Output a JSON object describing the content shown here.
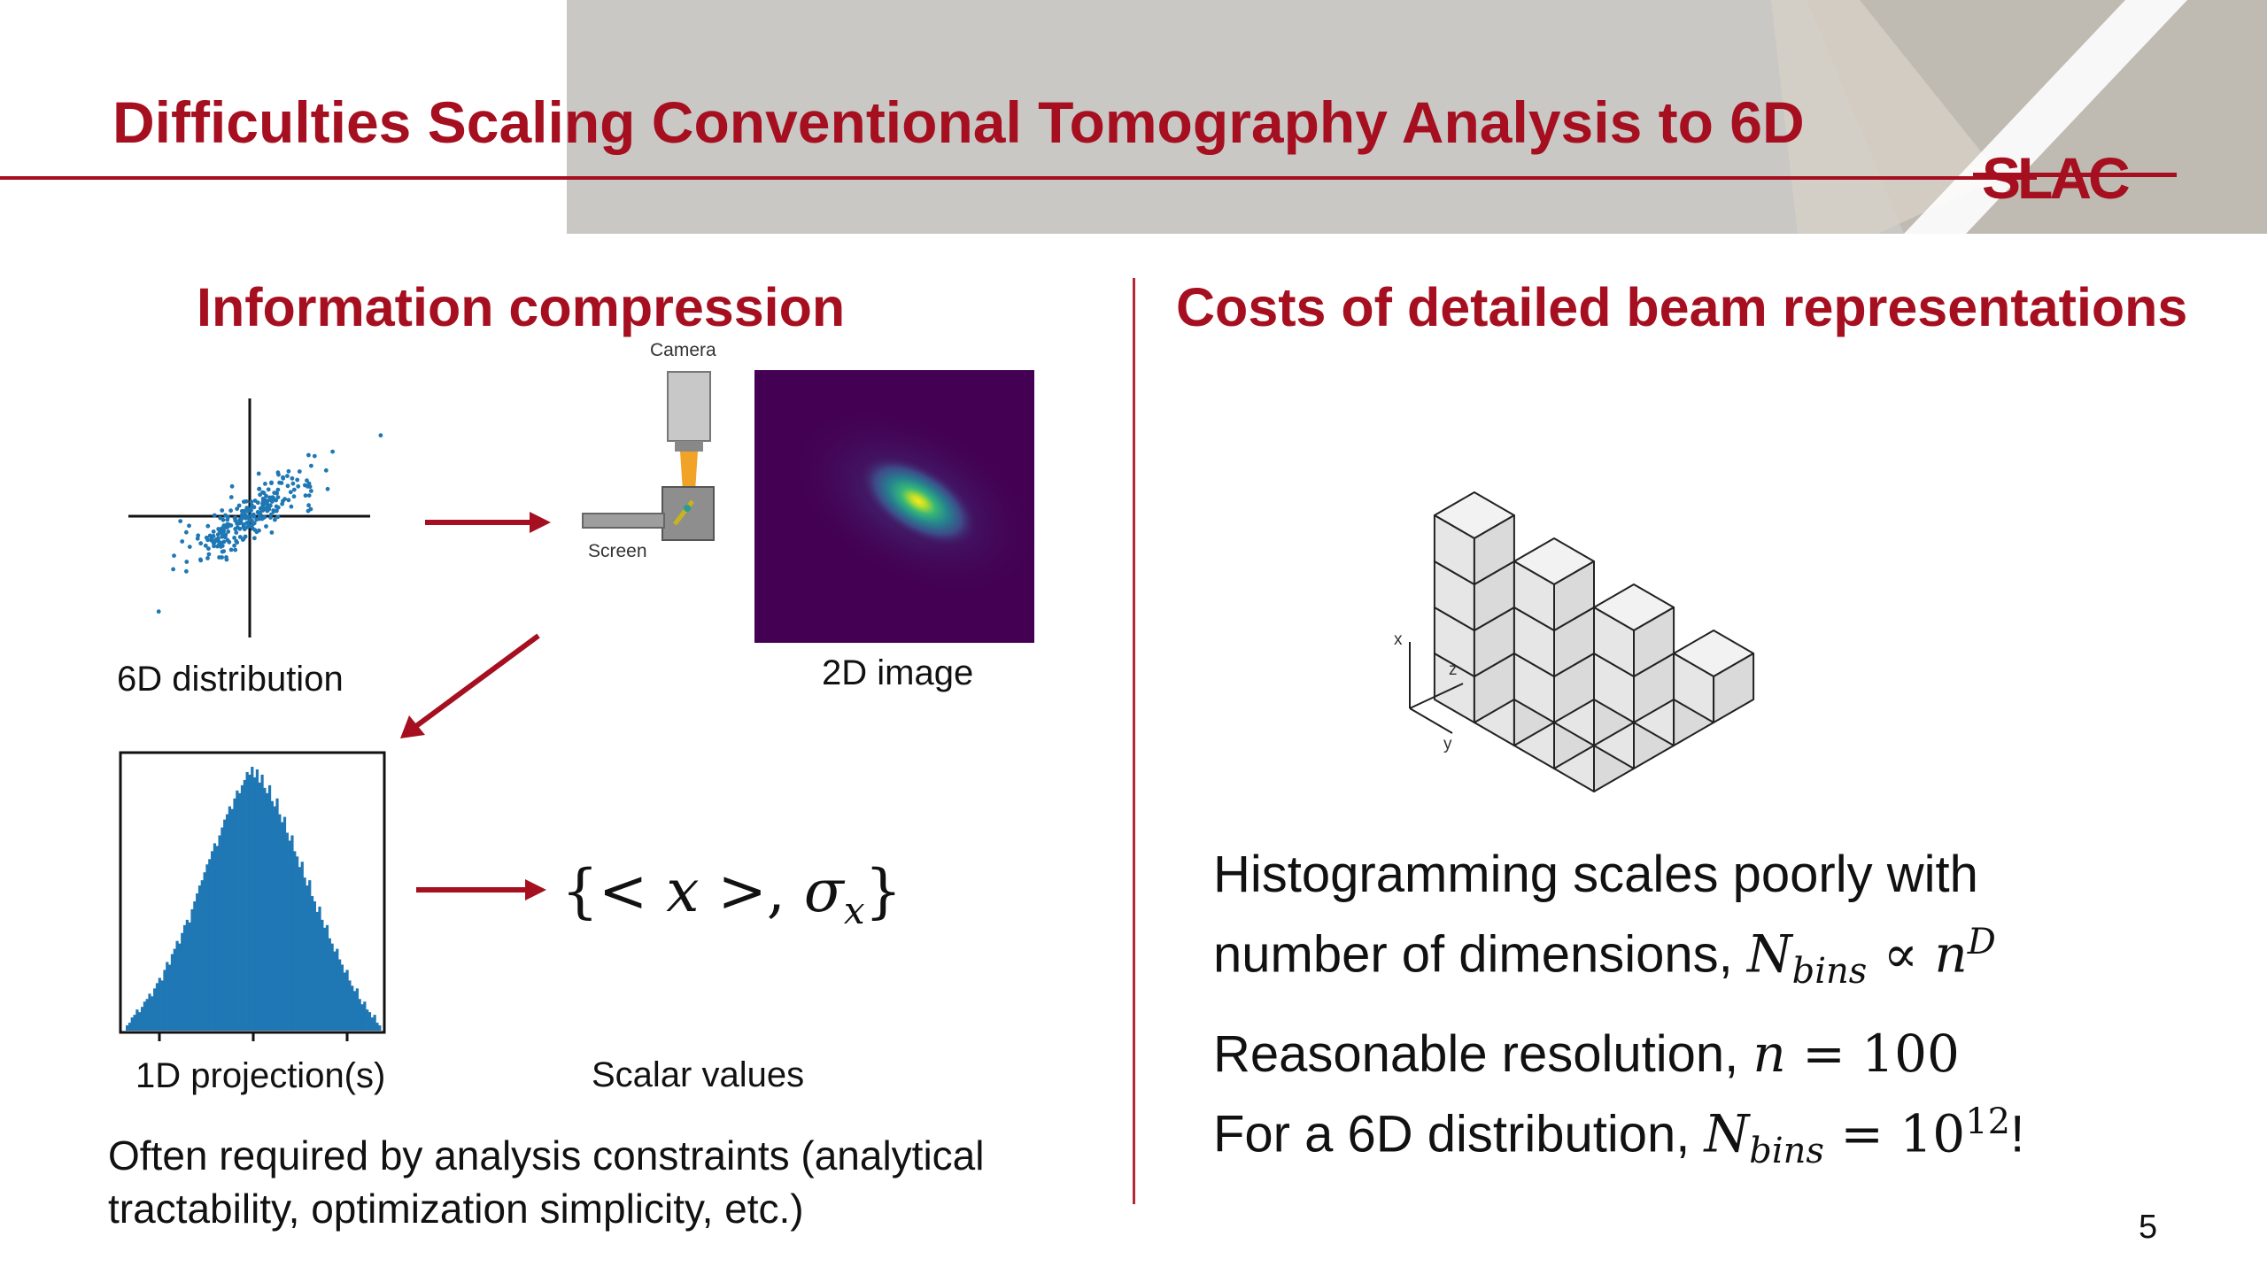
{
  "slide": {
    "title": "Difficulties Scaling Conventional Tomography Analysis to 6D",
    "logo_text": "SLAC",
    "page_number": "5",
    "accent_color": "#a50f1f"
  },
  "left": {
    "heading": "Information compression",
    "camera_label": "Camera",
    "screen_label": "Screen",
    "distribution_caption": "6D distribution",
    "image_caption": "2D image",
    "projection_caption": "1D projection(s)",
    "scalar_caption": "Scalar values",
    "scalar_formula": {
      "open": "{< ",
      "x": "x",
      "mid": " >, ",
      "sigma": "σ",
      "sub": "x",
      "close": "}"
    },
    "note_line1": "Often required by analysis constraints (analytical",
    "note_line2": "tractability, optimization simplicity, etc.)"
  },
  "right": {
    "heading": "Costs of detailed beam representations",
    "axis_x": "x",
    "axis_y": "y",
    "axis_z": "z",
    "para1_line1": "Histogramming scales poorly with",
    "para1_line2_text": "number of dimensions, ",
    "para1_formula": {
      "N": "N",
      "sub": "bins",
      "prop": " ∝ ",
      "n": "n",
      "sup": "D"
    },
    "para2_line1_text": "Reasonable resolution, ",
    "para2_formula": {
      "n": "n",
      "eq": " = 100"
    },
    "para3_line_text": "For a 6D distribution, ",
    "para3_formula": {
      "N": "N",
      "sub": "bins",
      "eq": " = 10",
      "sup": "12",
      "tail": "!"
    }
  },
  "histogram": {
    "type": "bar",
    "values": [
      2,
      3,
      5,
      6,
      8,
      7,
      9,
      11,
      12,
      14,
      13,
      16,
      18,
      20,
      19,
      23,
      26,
      25,
      29,
      31,
      34,
      33,
      37,
      40,
      42,
      41,
      46,
      49,
      52,
      55,
      57,
      60,
      63,
      65,
      68,
      71,
      70,
      74,
      77,
      80,
      82,
      85,
      84,
      88,
      91,
      90,
      93,
      95,
      98,
      97,
      100,
      96,
      99,
      94,
      97,
      92,
      90,
      93,
      87,
      85,
      88,
      82,
      79,
      81,
      75,
      72,
      74,
      68,
      66,
      62,
      64,
      58,
      55,
      57,
      51,
      49,
      45,
      47,
      42,
      39,
      40,
      35,
      33,
      30,
      31,
      27,
      25,
      22,
      23,
      19,
      17,
      15,
      16,
      12,
      10,
      11,
      8,
      7,
      5,
      6,
      3,
      2
    ],
    "max": 100
  },
  "scatter": {
    "type": "scatter",
    "correlation": 0.85,
    "count": 260,
    "color": "#1f77b4"
  },
  "cube_highlight_color": "#d58a8a"
}
